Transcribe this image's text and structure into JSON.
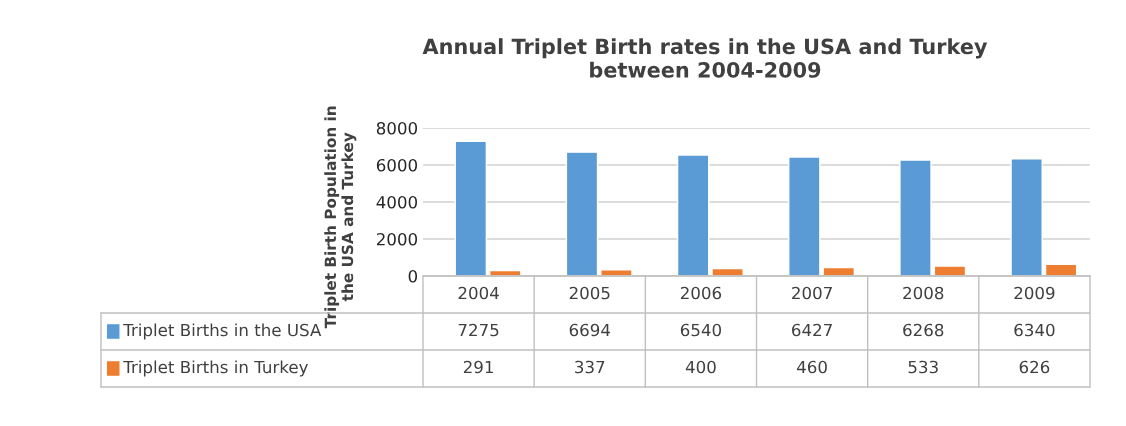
{
  "chart_data": {
    "type": "bar",
    "title": "Annual Triplet Birth rates in the USA and Turkey\nbetween 2004-2009",
    "ylabel": "Triplet Birth Population in\nthe USA and Turkey",
    "categories": [
      "2004",
      "2005",
      "2006",
      "2007",
      "2008",
      "2009"
    ],
    "series": [
      {
        "name": "Triplet Births in the USA",
        "color": "#5b9bd5",
        "values": [
          7275,
          6694,
          6540,
          6427,
          6268,
          6340
        ]
      },
      {
        "name": "Triplet Births in Turkey",
        "color": "#ed7d31",
        "values": [
          291,
          337,
          400,
          460,
          533,
          626
        ]
      }
    ],
    "ylim": [
      0,
      8000
    ],
    "yticks": [
      0,
      2000,
      4000,
      6000,
      8000
    ],
    "grid": "y",
    "data_labels": true,
    "legend": "bottom"
  }
}
